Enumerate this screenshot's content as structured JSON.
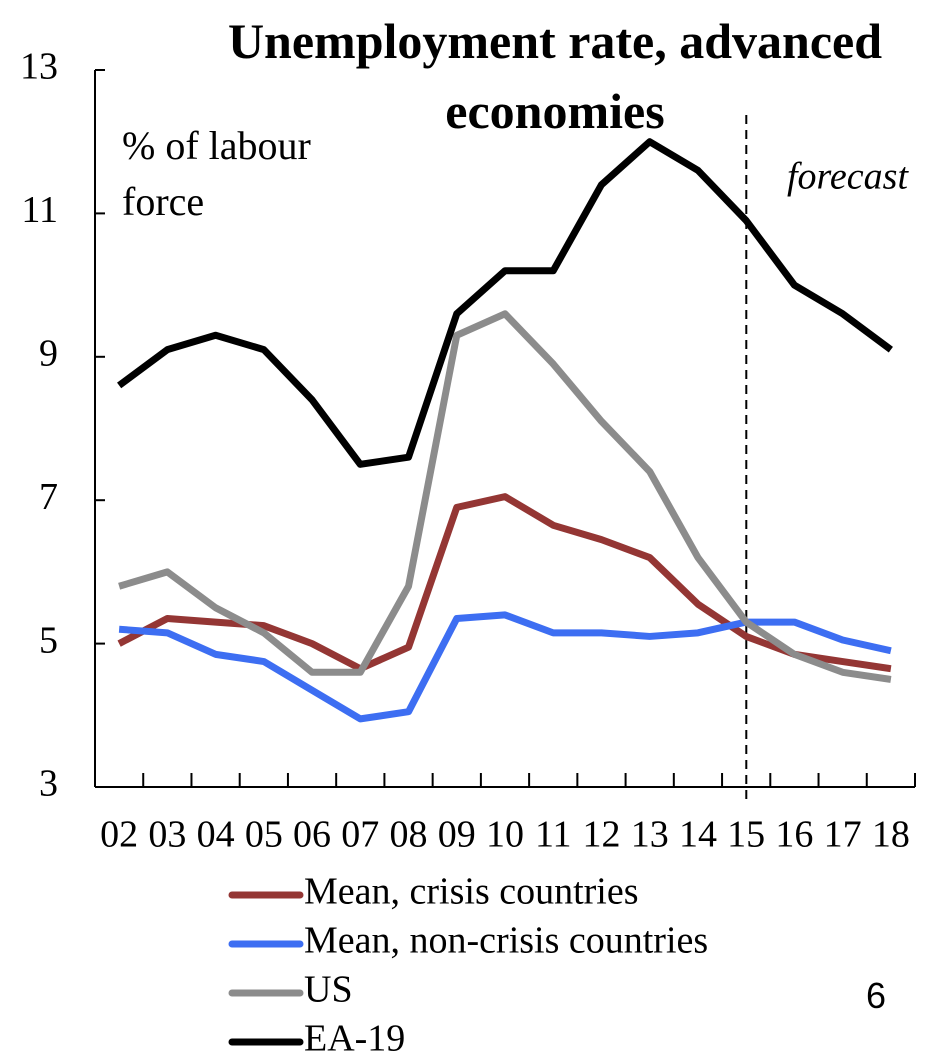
{
  "chart_data": {
    "type": "line",
    "title": "Unemployment rate, advanced economies",
    "y_label": "% of labour force",
    "annotation": "forecast",
    "page_number": "6",
    "categories": [
      "02",
      "03",
      "04",
      "05",
      "06",
      "07",
      "08",
      "09",
      "10",
      "11",
      "12",
      "13",
      "14",
      "15",
      "16",
      "17",
      "18"
    ],
    "ylim": [
      3,
      13
    ],
    "yticks": [
      3,
      5,
      7,
      9,
      11,
      13
    ],
    "series": [
      {
        "name": "Mean, crisis countries",
        "color": "#943634",
        "values": [
          5.0,
          5.35,
          5.3,
          5.25,
          5.0,
          4.65,
          4.95,
          6.9,
          7.05,
          6.65,
          6.45,
          6.2,
          5.55,
          5.1,
          4.85,
          4.75,
          4.65
        ]
      },
      {
        "name": "Mean, non-crisis countries",
        "color": "#3d6ef2",
        "values": [
          5.2,
          5.15,
          4.85,
          4.75,
          4.35,
          3.95,
          4.05,
          5.35,
          5.4,
          5.15,
          5.15,
          5.1,
          5.15,
          5.3,
          5.3,
          5.05,
          4.9
        ]
      },
      {
        "name": "US",
        "color": "#8c8c8c",
        "values": [
          5.8,
          6.0,
          5.5,
          5.15,
          4.6,
          4.6,
          5.8,
          9.3,
          9.6,
          8.9,
          8.1,
          7.4,
          6.2,
          5.3,
          4.85,
          4.6,
          4.5
        ]
      },
      {
        "name": "EA-19",
        "color": "#000000",
        "values": [
          8.6,
          9.1,
          9.3,
          9.1,
          8.4,
          7.5,
          7.6,
          9.6,
          10.2,
          10.2,
          11.4,
          12.0,
          11.6,
          10.9,
          10.0,
          9.6,
          9.1
        ]
      }
    ]
  }
}
